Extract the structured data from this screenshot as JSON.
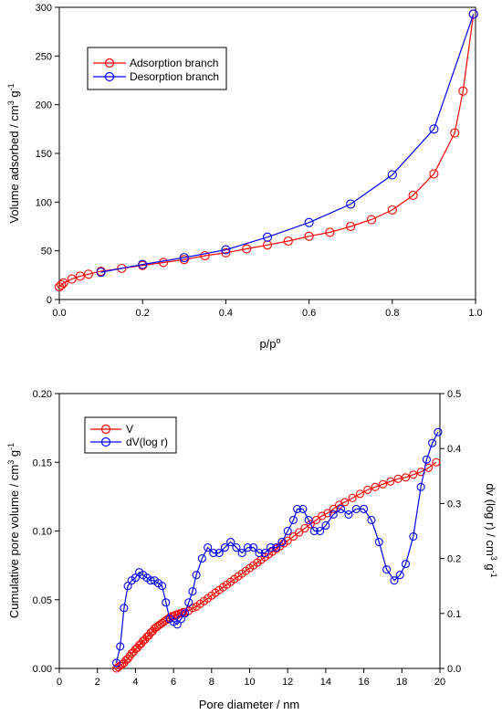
{
  "chart_data": [
    {
      "type": "line",
      "xlabel_main": "p/p",
      "xlabel_sup": "o",
      "ylabel_main": "Volume adsorbed / cm",
      "ylabel_sup1": "3",
      "ylabel_mid": " g",
      "ylabel_sup2": "-1",
      "xlim": [
        0,
        1.0
      ],
      "ylim": [
        0,
        300
      ],
      "xticks": [
        "0.0",
        "0.2",
        "0.4",
        "0.6",
        "0.8",
        "1.0"
      ],
      "yticks": [
        "0",
        "50",
        "100",
        "150",
        "200",
        "250",
        "300"
      ],
      "legend_position": "top-left",
      "series": [
        {
          "name": "Adsorption branch",
          "color": "#ff0000",
          "x": [
            0.0,
            0.005,
            0.01,
            0.03,
            0.05,
            0.07,
            0.1,
            0.15,
            0.2,
            0.25,
            0.3,
            0.35,
            0.4,
            0.45,
            0.5,
            0.55,
            0.6,
            0.65,
            0.7,
            0.75,
            0.8,
            0.85,
            0.9,
            0.95,
            0.97,
            0.995
          ],
          "y": [
            13,
            15,
            17,
            21,
            24,
            26,
            29,
            32,
            35,
            38,
            41,
            45,
            48,
            52,
            56,
            60,
            65,
            69,
            75,
            82,
            92,
            107,
            129,
            171,
            214,
            293
          ]
        },
        {
          "name": "Desorption branch",
          "color": "#0000ff",
          "x": [
            0.1,
            0.2,
            0.3,
            0.4,
            0.5,
            0.6,
            0.7,
            0.8,
            0.9,
            0.995
          ],
          "y": [
            28,
            36,
            43,
            51,
            64,
            79,
            98,
            128,
            175,
            293
          ]
        }
      ]
    },
    {
      "type": "line",
      "xlabel": "Pore diameter / nm",
      "ylabel_left_main": "Cumulative pore volume / cm",
      "ylabel_left_sup1": "3",
      "ylabel_left_mid": " g",
      "ylabel_left_sup2": "-1",
      "ylabel_right_main": "dv (log r) / cm",
      "ylabel_right_sup1": "3",
      "ylabel_right_mid": " g",
      "ylabel_right_sup2": "-1",
      "xlim": [
        0,
        20
      ],
      "ylim_left": [
        0,
        0.2
      ],
      "ylim_right": [
        0,
        0.5
      ],
      "xticks": [
        "0",
        "2",
        "4",
        "6",
        "8",
        "10",
        "12",
        "14",
        "16",
        "18",
        "20"
      ],
      "yticks_left": [
        "0.00",
        "0.05",
        "0.10",
        "0.15",
        "0.20"
      ],
      "yticks_right": [
        "0.0",
        "0.1",
        "0.2",
        "0.3",
        "0.4",
        "0.5"
      ],
      "legend_position": "top-left",
      "series": [
        {
          "name": "V",
          "color": "#ff0000",
          "axis": "left",
          "x": [
            3.0,
            3.1,
            3.2,
            3.3,
            3.4,
            3.5,
            3.6,
            3.7,
            3.8,
            3.9,
            4.0,
            4.1,
            4.2,
            4.3,
            4.4,
            4.5,
            4.6,
            4.7,
            4.8,
            4.9,
            5.0,
            5.1,
            5.2,
            5.3,
            5.4,
            5.5,
            5.6,
            5.7,
            5.8,
            5.9,
            6.0,
            6.1,
            6.2,
            6.3,
            6.4,
            6.5,
            6.6,
            6.8,
            7.0,
            7.2,
            7.4,
            7.6,
            7.8,
            8.0,
            8.2,
            8.4,
            8.6,
            8.8,
            9.0,
            9.2,
            9.4,
            9.6,
            9.8,
            10.0,
            10.2,
            10.4,
            10.6,
            10.8,
            11.0,
            11.2,
            11.4,
            11.6,
            11.8,
            12.0,
            12.3,
            12.6,
            12.9,
            13.2,
            13.5,
            13.8,
            14.1,
            14.4,
            14.7,
            15.0,
            15.4,
            15.8,
            16.2,
            16.6,
            17.0,
            17.4,
            17.8,
            18.2,
            18.6,
            19.0,
            19.4,
            19.8
          ],
          "y": [
            0.0,
            0.001,
            0.002,
            0.003,
            0.004,
            0.006,
            0.007,
            0.009,
            0.011,
            0.012,
            0.014,
            0.015,
            0.017,
            0.018,
            0.02,
            0.021,
            0.023,
            0.024,
            0.026,
            0.027,
            0.029,
            0.03,
            0.031,
            0.032,
            0.033,
            0.034,
            0.035,
            0.036,
            0.037,
            0.038,
            0.038,
            0.039,
            0.039,
            0.04,
            0.04,
            0.041,
            0.041,
            0.042,
            0.044,
            0.045,
            0.047,
            0.049,
            0.051,
            0.053,
            0.055,
            0.057,
            0.059,
            0.061,
            0.063,
            0.065,
            0.067,
            0.069,
            0.071,
            0.073,
            0.075,
            0.077,
            0.079,
            0.081,
            0.083,
            0.085,
            0.087,
            0.089,
            0.091,
            0.093,
            0.096,
            0.099,
            0.102,
            0.105,
            0.108,
            0.111,
            0.113,
            0.116,
            0.119,
            0.121,
            0.124,
            0.127,
            0.13,
            0.132,
            0.134,
            0.136,
            0.138,
            0.139,
            0.141,
            0.143,
            0.146,
            0.15
          ]
        },
        {
          "name": "dV(log r)",
          "color": "#0000ff",
          "axis": "right",
          "x": [
            3.0,
            3.2,
            3.4,
            3.6,
            3.8,
            4.0,
            4.2,
            4.4,
            4.6,
            4.8,
            5.0,
            5.2,
            5.4,
            5.6,
            5.8,
            6.0,
            6.2,
            6.4,
            6.6,
            6.8,
            7.0,
            7.2,
            7.5,
            7.8,
            8.1,
            8.4,
            8.7,
            9.0,
            9.3,
            9.6,
            9.9,
            10.2,
            10.5,
            10.8,
            11.1,
            11.4,
            11.7,
            12.0,
            12.3,
            12.5,
            12.8,
            13.1,
            13.4,
            13.7,
            14.0,
            14.4,
            14.8,
            15.2,
            15.6,
            16.0,
            16.4,
            16.8,
            17.2,
            17.6,
            17.9,
            18.2,
            18.6,
            19.0,
            19.3,
            19.6,
            19.9
          ],
          "y": [
            0.01,
            0.04,
            0.11,
            0.15,
            0.16,
            0.165,
            0.175,
            0.17,
            0.165,
            0.16,
            0.16,
            0.155,
            0.15,
            0.12,
            0.09,
            0.085,
            0.08,
            0.09,
            0.1,
            0.12,
            0.14,
            0.17,
            0.2,
            0.22,
            0.21,
            0.21,
            0.22,
            0.23,
            0.22,
            0.21,
            0.22,
            0.22,
            0.21,
            0.21,
            0.22,
            0.22,
            0.23,
            0.25,
            0.27,
            0.29,
            0.29,
            0.27,
            0.25,
            0.25,
            0.26,
            0.28,
            0.29,
            0.28,
            0.29,
            0.29,
            0.27,
            0.23,
            0.18,
            0.16,
            0.17,
            0.19,
            0.24,
            0.33,
            0.38,
            0.41,
            0.43
          ]
        }
      ]
    }
  ]
}
